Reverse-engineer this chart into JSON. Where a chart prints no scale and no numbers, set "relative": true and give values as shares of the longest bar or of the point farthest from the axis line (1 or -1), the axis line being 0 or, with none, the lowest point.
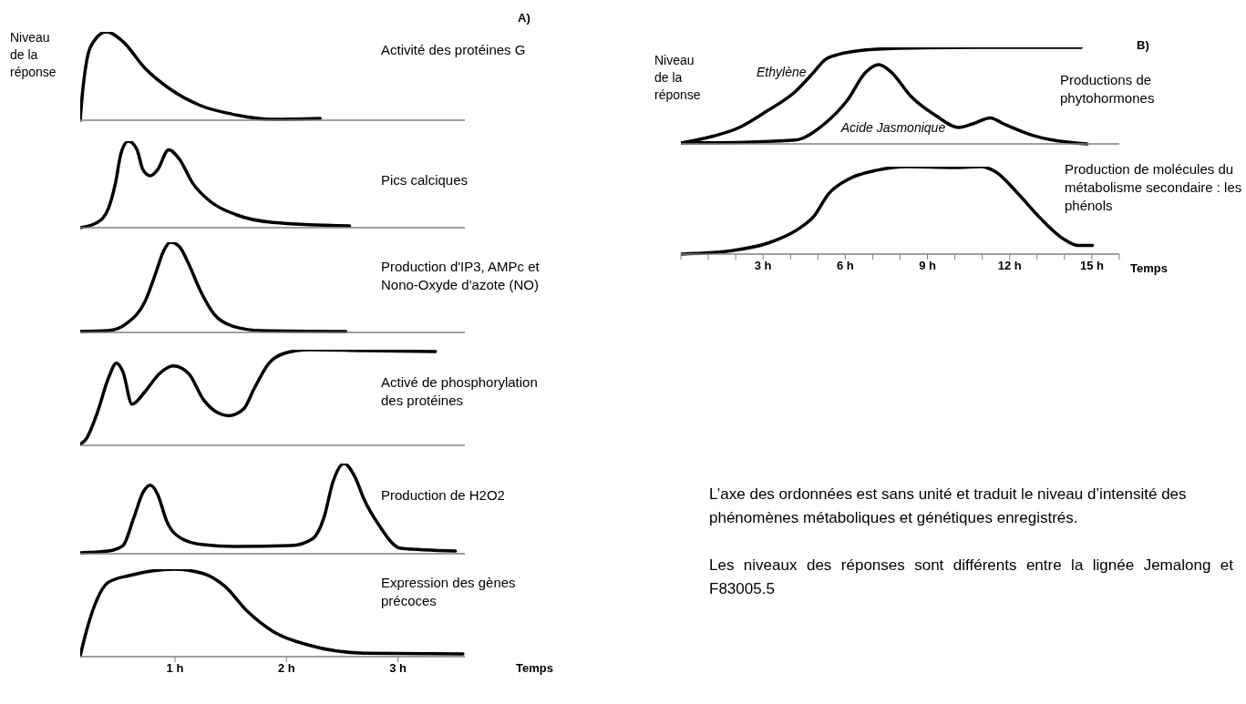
{
  "chart_data": [
    {
      "type": "line",
      "relative": true,
      "title": "Activité des protéines G",
      "ylabel": "Niveau de la réponse",
      "annotations": [
        "A)"
      ],
      "xlim": [
        0.15,
        3.6
      ],
      "tick_labels": false,
      "series": [
        {
          "color": "#000000",
          "x": [
            0.15,
            0.166,
            0.205,
            0.27,
            0.385,
            0.533,
            0.73,
            0.959,
            1.221,
            1.549,
            1.877,
            2.303
          ],
          "values": [
            0,
            0.25,
            0.65,
            0.89,
            1,
            0.89,
            0.59,
            0.35,
            0.17,
            0.06,
            0.01,
            0.02
          ]
        }
      ]
    },
    {
      "type": "line",
      "relative": true,
      "title": "Pics calciques",
      "xlim": [
        0.15,
        3.6
      ],
      "tick_labels": false,
      "series": [
        {
          "color": "#000000",
          "x": [
            0.15,
            0.303,
            0.402,
            0.467,
            0.516,
            0.582,
            0.657,
            0.713,
            0.779,
            0.844,
            0.943,
            1.041,
            1.156,
            1.32,
            1.549,
            1.877,
            2.566
          ],
          "values": [
            0,
            0.06,
            0.22,
            0.52,
            0.86,
            1,
            0.91,
            0.67,
            0.6,
            0.67,
            0.9,
            0.79,
            0.52,
            0.3,
            0.15,
            0.06,
            0.02
          ]
        }
      ]
    },
    {
      "type": "line",
      "relative": true,
      "title": "Production d'IP3,  AMPc et Nono-Oxyde d'azote (NO)",
      "xlim": [
        0.15,
        3.6
      ],
      "tick_labels": false,
      "series": [
        {
          "color": "#000000",
          "x": [
            0.15,
            0.402,
            0.566,
            0.73,
            0.828,
            0.893,
            0.959,
            1.041,
            1.123,
            1.221,
            1.352,
            1.516,
            1.779,
            2.533
          ],
          "values": [
            0.01,
            0.02,
            0.1,
            0.34,
            0.66,
            0.89,
            1,
            0.95,
            0.76,
            0.48,
            0.2,
            0.07,
            0.02,
            0.01
          ]
        }
      ]
    },
    {
      "type": "line",
      "relative": true,
      "title": "Activé de phosphorylation des protéines",
      "xlim": [
        0.15,
        3.6
      ],
      "tick_labels": false,
      "series": [
        {
          "color": "#000000",
          "x": [
            0.15,
            0.205,
            0.303,
            0.402,
            0.474,
            0.533,
            0.615,
            0.73,
            0.861,
            0.985,
            1.123,
            1.254,
            1.385,
            1.477,
            1.615,
            1.713,
            1.844,
            1.975,
            2.205,
            2.697,
            3.336
          ],
          "values": [
            0.01,
            0.07,
            0.34,
            0.7,
            0.86,
            0.77,
            0.43,
            0.56,
            0.75,
            0.83,
            0.75,
            0.48,
            0.34,
            0.31,
            0.38,
            0.6,
            0.86,
            0.96,
            1,
            0.99,
            0.98
          ]
        }
      ]
    },
    {
      "type": "line",
      "relative": true,
      "title": "Production de H2O2",
      "xlim": [
        0.15,
        3.6
      ],
      "tick_labels": false,
      "series": [
        {
          "color": "#000000",
          "x": [
            0.15,
            0.402,
            0.533,
            0.631,
            0.713,
            0.779,
            0.844,
            0.926,
            1.057,
            1.254,
            1.549,
            2.041,
            2.238,
            2.336,
            2.418,
            2.516,
            2.615,
            2.697,
            2.828,
            3.025,
            3.516
          ],
          "values": [
            0.01,
            0.03,
            0.09,
            0.4,
            0.68,
            0.76,
            0.66,
            0.36,
            0.17,
            0.1,
            0.08,
            0.09,
            0.17,
            0.4,
            0.8,
            1,
            0.85,
            0.6,
            0.32,
            0.06,
            0.03
          ]
        }
      ]
    },
    {
      "type": "line",
      "relative": true,
      "title": "Expression des gènes précoces",
      "xlabel": "Temps",
      "xlim": [
        0.15,
        3.6
      ],
      "xticks": [
        {
          "value": 1,
          "label": "1 h"
        },
        {
          "value": 2,
          "label": "2 h"
        },
        {
          "value": 3,
          "label": "3 h"
        }
      ],
      "tick_labels": "x",
      "series": [
        {
          "color": "#000000",
          "x": [
            0.15,
            0.205,
            0.303,
            0.402,
            0.598,
            0.992,
            1.254,
            1.451,
            1.648,
            1.877,
            2.205,
            2.697,
            3.582
          ],
          "values": [
            0.01,
            0.29,
            0.66,
            0.85,
            0.93,
            1,
            0.95,
            0.8,
            0.52,
            0.29,
            0.13,
            0.04,
            0.03
          ]
        }
      ]
    },
    {
      "type": "line",
      "relative": true,
      "title": "Productions de phytohormones",
      "ylabel": "Niveau de la réponse",
      "annotations": [
        "B)"
      ],
      "xlim": [
        0,
        16
      ],
      "tick_labels": false,
      "series": [
        {
          "name": "Ethylène",
          "color": "#000000",
          "x": [
            0,
            1.18,
            2.13,
            3.08,
            4.17,
            4.84,
            5.25,
            5.79,
            6.61,
            7.97,
            10.68,
            14.61
          ],
          "values": [
            0.01,
            0.08,
            0.17,
            0.33,
            0.54,
            0.74,
            0.87,
            0.93,
            0.97,
            0.99,
            1,
            1
          ]
        },
        {
          "name": "Acide Jasmonique",
          "color": "#000000",
          "x": [
            0,
            2.54,
            4.17,
            5.25,
            6.07,
            6.74,
            7.22,
            7.69,
            8.37,
            9.32,
            10.14,
            10.68,
            11.29,
            11.76,
            12.71,
            14.82
          ],
          "values": [
            0.01,
            0.02,
            0.04,
            0.21,
            0.45,
            0.74,
            0.82,
            0.74,
            0.5,
            0.29,
            0.17,
            0.21,
            0.27,
            0.21,
            0.1,
            0
          ]
        }
      ]
    },
    {
      "type": "line",
      "relative": true,
      "title": "Production de molécules du métabolisme secondaire : les phénols",
      "xlabel": "Temps",
      "xlim": [
        0,
        16
      ],
      "xticks": [
        {
          "value": 0,
          "label": null
        },
        {
          "value": 1,
          "label": null
        },
        {
          "value": 2,
          "label": null
        },
        {
          "value": 3,
          "label": "3 h"
        },
        {
          "value": 4,
          "label": null
        },
        {
          "value": 5,
          "label": null
        },
        {
          "value": 6,
          "label": "6 h"
        },
        {
          "value": 7,
          "label": null
        },
        {
          "value": 8,
          "label": null
        },
        {
          "value": 9,
          "label": "9 h"
        },
        {
          "value": 10,
          "label": null
        },
        {
          "value": 11,
          "label": null
        },
        {
          "value": 12,
          "label": "12 h"
        },
        {
          "value": 13,
          "label": null
        },
        {
          "value": 14,
          "label": null
        },
        {
          "value": 15,
          "label": "15 h"
        },
        {
          "value": 16,
          "label": null
        }
      ],
      "tick_labels": "x",
      "annotations": [
        "L’axe des ordonnées est sans unité et traduit le niveau d’intensité des phénomènes métaboliques et génétiques enregistrés.",
        "Les niveaux des réponses sont différents entre la lignée Jemalong et F83005.5"
      ],
      "series": [
        {
          "color": "#000000",
          "x": [
            0,
            1.86,
            3.22,
            4.3,
            4.85,
            5.39,
            6.07,
            7.16,
            8.24,
            10.01,
            10.95,
            11.49,
            12.31,
            13.12,
            13.93,
            14.48,
            15.02
          ],
          "values": [
            0,
            0.04,
            0.13,
            0.29,
            0.43,
            0.69,
            0.85,
            0.96,
            1,
            0.99,
            1,
            0.94,
            0.69,
            0.41,
            0.18,
            0.1,
            0.1
          ]
        }
      ]
    }
  ]
}
